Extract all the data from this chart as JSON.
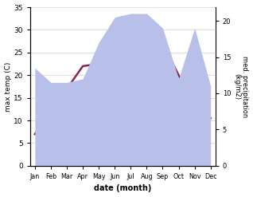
{
  "months": [
    "Jan",
    "Feb",
    "Mar",
    "Apr",
    "May",
    "Jun",
    "Jul",
    "Aug",
    "Sep",
    "Oct",
    "Nov",
    "Dec"
  ],
  "temp": [
    7.0,
    12.0,
    17.0,
    22.0,
    22.5,
    28.5,
    30.5,
    30.5,
    27.0,
    20.0,
    13.0,
    10.5
  ],
  "precip": [
    13.5,
    11.5,
    11.5,
    12.0,
    17.0,
    20.5,
    21.0,
    21.0,
    19.0,
    12.0,
    19.0,
    11.0
  ],
  "temp_color": "#8B2252",
  "precip_fill_color": "#b8bfe8",
  "temp_ylim": [
    0,
    35
  ],
  "precip_ylim": [
    0,
    21.875
  ],
  "right_yticks": [
    0,
    5,
    10,
    15,
    20
  ],
  "left_yticks": [
    0,
    5,
    10,
    15,
    20,
    25,
    30,
    35
  ],
  "xlabel": "date (month)",
  "ylabel_left": "max temp (C)",
  "ylabel_right": "med. precipitation\n(kg/m2)",
  "bg_color": "#ffffff",
  "grid_color": "#d0d0d0"
}
